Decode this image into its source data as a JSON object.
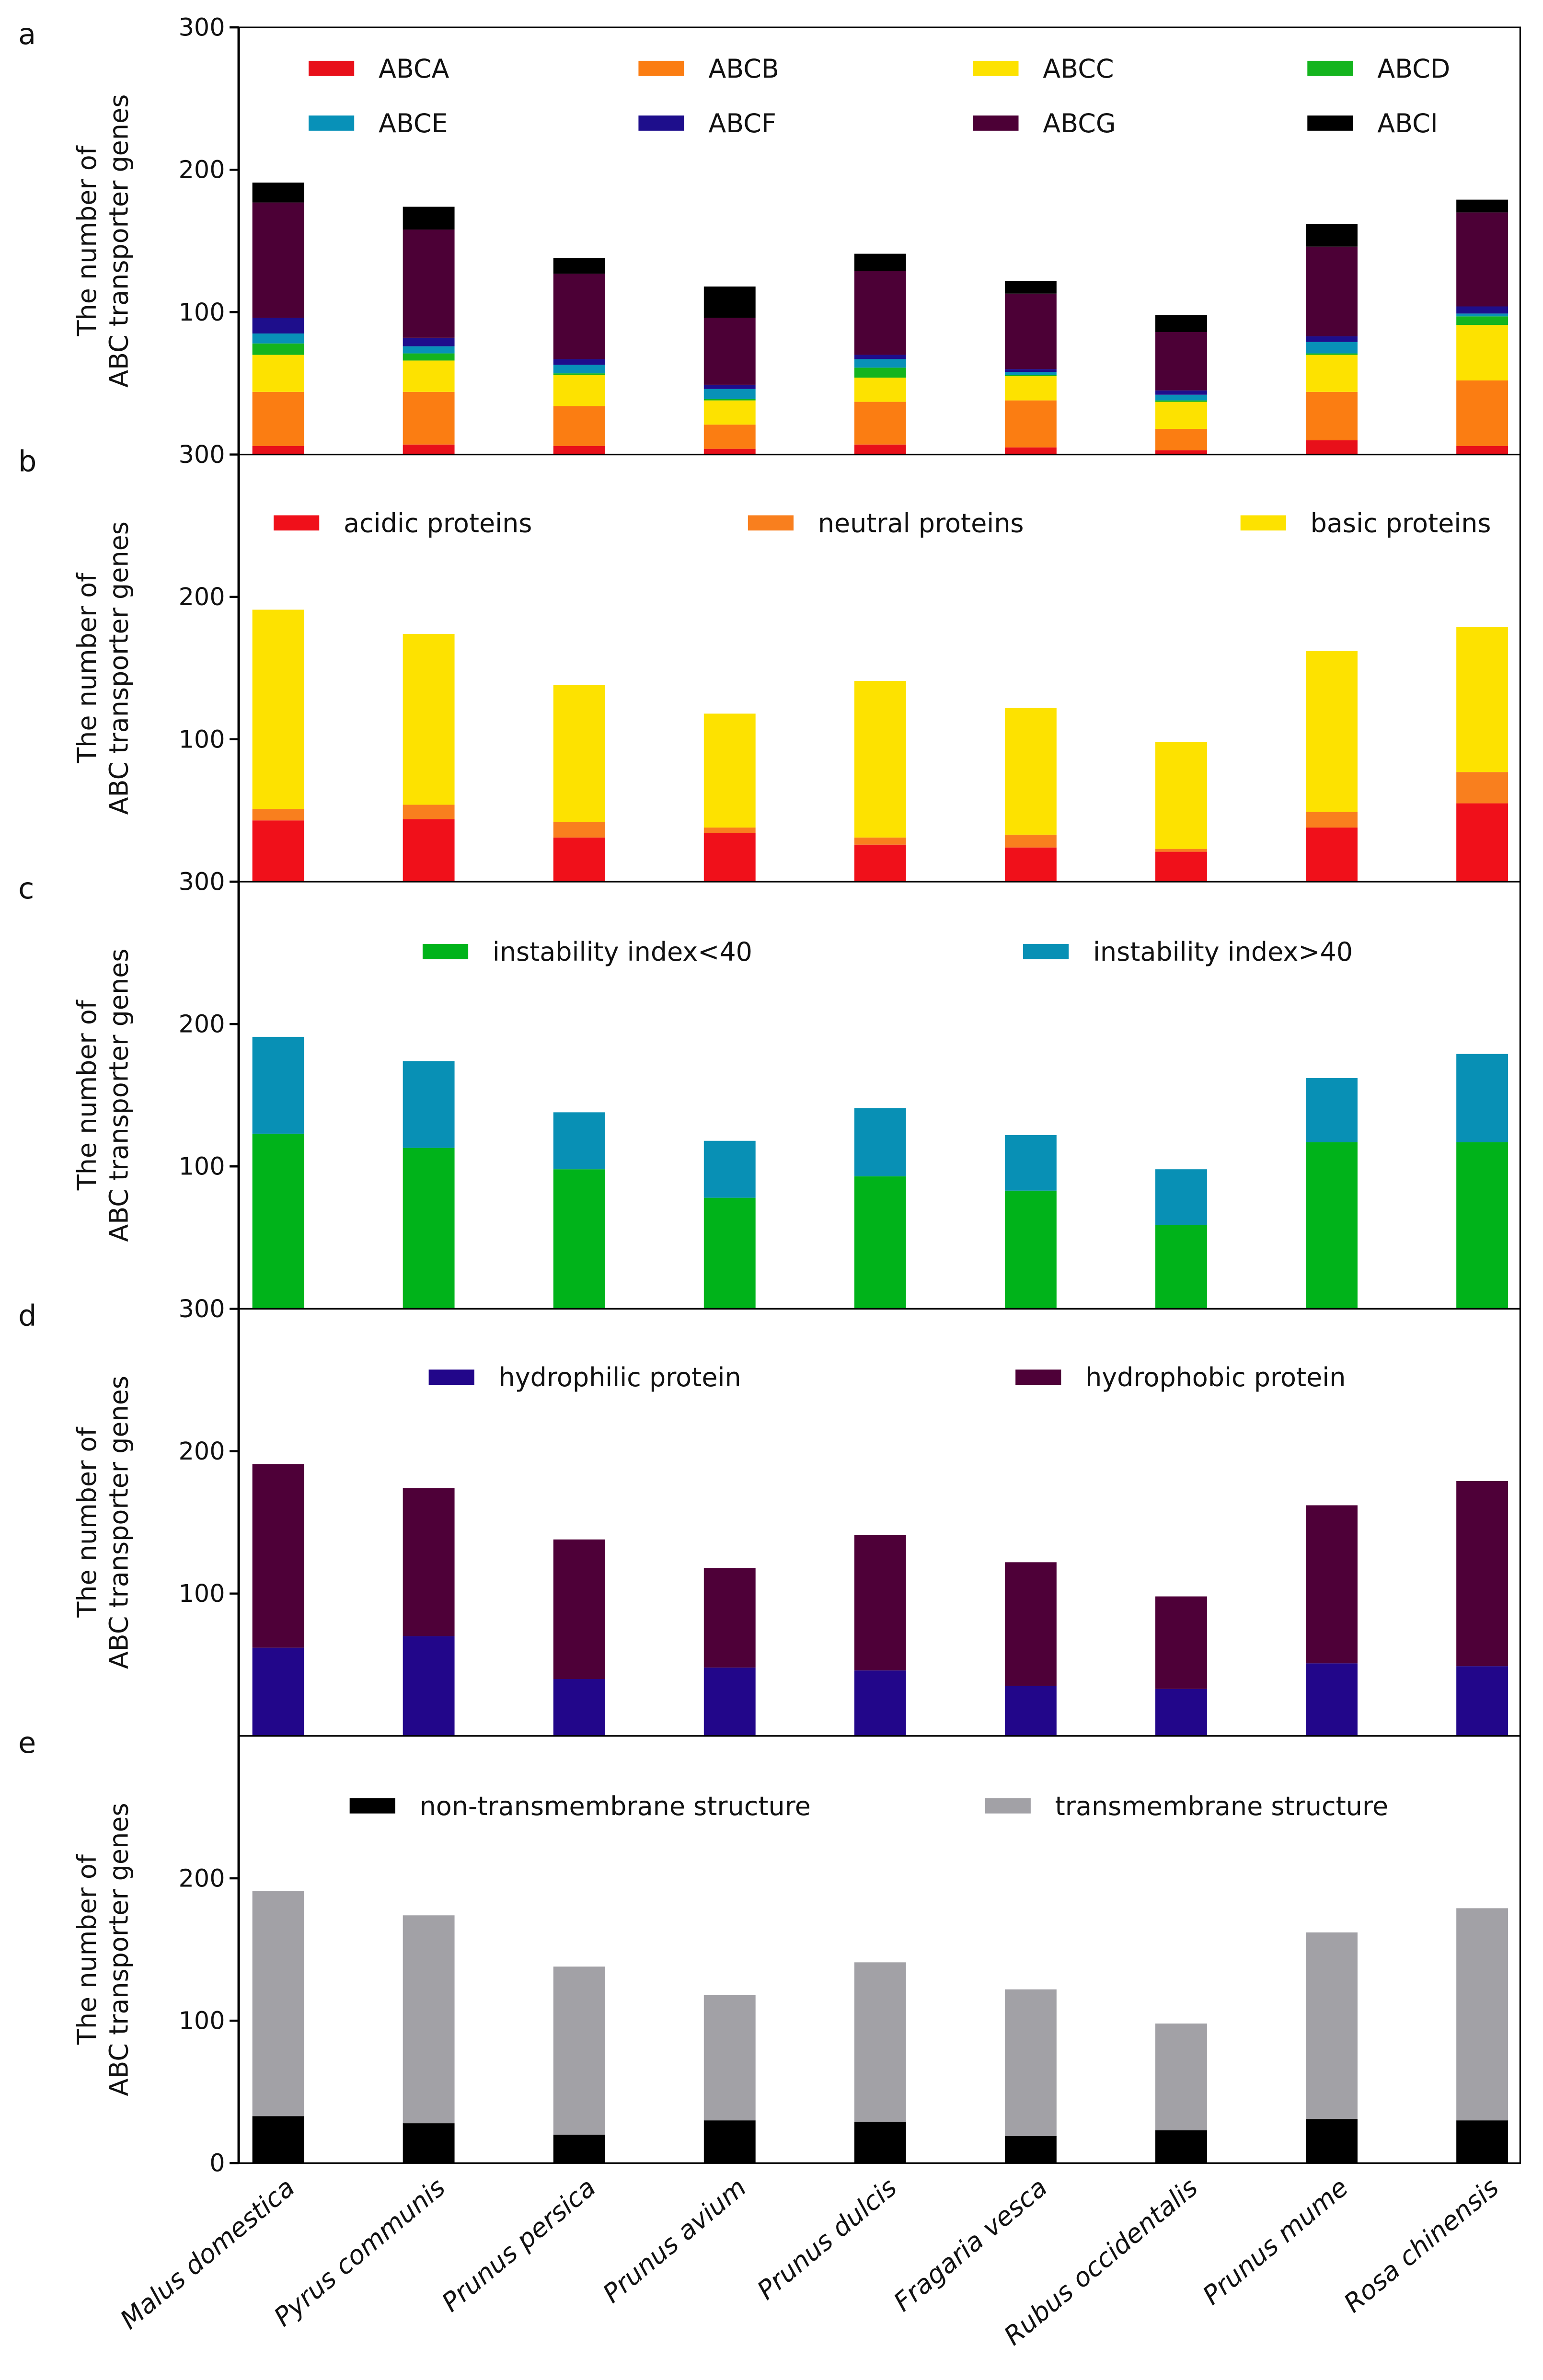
{
  "chart_data": [
    {
      "type": "bar",
      "label": "a",
      "ylabel": [
        "The number of",
        "ABC transporter genes"
      ],
      "ylim": [
        0,
        300
      ],
      "yticks": [
        100,
        200,
        300
      ],
      "stacked": true,
      "series": [
        {
          "name": "ABCA",
          "color": "#e8101a",
          "values": [
            6,
            7,
            6,
            4,
            7,
            5,
            3,
            10,
            6
          ]
        },
        {
          "name": "ABCB",
          "color": "#fb7d12",
          "values": [
            38,
            37,
            28,
            17,
            30,
            33,
            15,
            34,
            46
          ]
        },
        {
          "name": "ABCC",
          "color": "#fde200",
          "values": [
            26,
            22,
            22,
            17,
            17,
            17,
            19,
            26,
            39
          ]
        },
        {
          "name": "ABCD",
          "color": "#14b41e",
          "values": [
            8,
            5,
            1,
            1,
            7,
            1,
            1,
            1,
            6
          ]
        },
        {
          "name": "ABCE",
          "color": "#0891b8",
          "values": [
            7,
            5,
            6,
            7,
            6,
            2,
            4,
            8,
            2
          ]
        },
        {
          "name": "ABCF",
          "color": "#1e0e8c",
          "values": [
            11,
            6,
            4,
            3,
            3,
            2,
            3,
            4,
            5
          ]
        },
        {
          "name": "ABCG",
          "color": "#4c0036",
          "values": [
            81,
            76,
            60,
            47,
            59,
            53,
            41,
            63,
            66
          ]
        },
        {
          "name": "ABCI",
          "color": "#000000",
          "values": [
            14,
            16,
            11,
            22,
            12,
            9,
            12,
            16,
            9
          ]
        }
      ]
    },
    {
      "type": "bar",
      "label": "b",
      "ylabel": [
        "The number of",
        "ABC transporter genes"
      ],
      "ylim": [
        0,
        300
      ],
      "yticks": [
        100,
        200,
        300
      ],
      "stacked": true,
      "series": [
        {
          "name": "acidic proteins",
          "color": "#f0101a",
          "values": [
            43,
            44,
            31,
            34,
            26,
            24,
            21,
            38,
            55
          ]
        },
        {
          "name": "neutral proteins",
          "color": "#f97f1e",
          "values": [
            8,
            10,
            11,
            4,
            5,
            9,
            2,
            11,
            22
          ]
        },
        {
          "name": "basic proteins",
          "color": "#fde200",
          "values": [
            140,
            120,
            96,
            80,
            110,
            89,
            75,
            113,
            102
          ]
        }
      ]
    },
    {
      "type": "bar",
      "label": "c",
      "ylabel": [
        "The number of",
        "ABC transporter genes"
      ],
      "ylim": [
        0,
        300
      ],
      "yticks": [
        100,
        200,
        300
      ],
      "stacked": true,
      "series": [
        {
          "name": "instability index<40",
          "color": "#00b31a",
          "values": [
            123,
            113,
            98,
            78,
            93,
            83,
            59,
            117,
            117
          ]
        },
        {
          "name": "instability index>40",
          "color": "#0890b5",
          "values": [
            68,
            61,
            40,
            40,
            48,
            39,
            39,
            45,
            62
          ]
        }
      ]
    },
    {
      "type": "bar",
      "label": "d",
      "ylabel": [
        "The number of",
        "ABC transporter genes"
      ],
      "ylim": [
        0,
        300
      ],
      "yticks": [
        100,
        200,
        300
      ],
      "stacked": true,
      "series": [
        {
          "name": "hydrophilic protein",
          "color": "#22068a",
          "values": [
            62,
            70,
            40,
            48,
            46,
            35,
            33,
            51,
            49
          ]
        },
        {
          "name": "hydrophobic protein",
          "color": "#4e0038",
          "values": [
            129,
            104,
            98,
            70,
            95,
            87,
            65,
            111,
            130
          ]
        }
      ]
    },
    {
      "type": "bar",
      "label": "e",
      "ylabel": [
        "The number of",
        "ABC transporter genes"
      ],
      "ylim": [
        0,
        300
      ],
      "yticks": [
        0,
        100,
        200
      ],
      "stacked": true,
      "categories": [
        "Malus domestica",
        "Pyrus communis",
        "Prunus persica",
        "Prunus avium",
        "Prunus dulcis",
        "Fragaria vesca",
        "Rubus occidentalis",
        "Prunus mume",
        "Rosa chinensis"
      ],
      "series": [
        {
          "name": "non-transmembrane structure",
          "color": "#000000",
          "values": [
            33,
            28,
            20,
            30,
            29,
            19,
            23,
            31,
            30
          ]
        },
        {
          "name": "transmembrane structure",
          "color": "#a2a1a6",
          "values": [
            158,
            146,
            118,
            88,
            112,
            103,
            75,
            131,
            149
          ]
        }
      ]
    }
  ]
}
